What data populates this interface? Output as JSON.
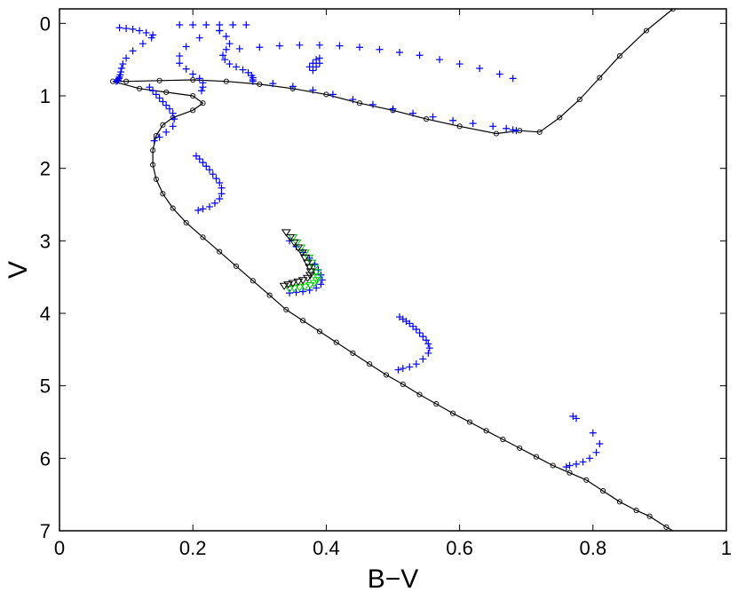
{
  "chart_data": {
    "type": "scatter",
    "title": "",
    "xlabel": "B−V",
    "ylabel": "V",
    "xlim": [
      0,
      1
    ],
    "ylim": [
      7,
      -0.2
    ],
    "y_inverted": true,
    "xticks": [
      0,
      0.2,
      0.4,
      0.6,
      0.8,
      1
    ],
    "xtick_labels": [
      "0",
      "0.2",
      "0.4",
      "0.6",
      "0.8",
      "1"
    ],
    "yticks": [
      0,
      1,
      2,
      3,
      4,
      5,
      6,
      7
    ],
    "ytick_labels": [
      "0",
      "1",
      "2",
      "3",
      "4",
      "5",
      "6",
      "7"
    ],
    "grid": false,
    "colors": {
      "isochrone": "#000000",
      "tracks": "#0000ff",
      "triangles_black": "#000000",
      "triangles_green": "#00cc00"
    },
    "series": [
      {
        "marker": "circle-line",
        "color": "#000000",
        "x": [
          0.92,
          0.88,
          0.84,
          0.81,
          0.78,
          0.75,
          0.72,
          0.69,
          0.655,
          0.6,
          0.55,
          0.5,
          0.45,
          0.4,
          0.35,
          0.3,
          0.25,
          0.2,
          0.15,
          0.1,
          0.08,
          0.12,
          0.16,
          0.2,
          0.215,
          0.2,
          0.17,
          0.155,
          0.145,
          0.14,
          0.14,
          0.145,
          0.155,
          0.17,
          0.19,
          0.215,
          0.24,
          0.265,
          0.29,
          0.315,
          0.34,
          0.365,
          0.39,
          0.415,
          0.44,
          0.465,
          0.49,
          0.515,
          0.54,
          0.565,
          0.59,
          0.615,
          0.64,
          0.665,
          0.69,
          0.715,
          0.74,
          0.765,
          0.79,
          0.815,
          0.84,
          0.865,
          0.885,
          0.91,
          0.93
        ],
        "y": [
          -0.2,
          0.1,
          0.45,
          0.75,
          1.05,
          1.3,
          1.5,
          1.48,
          1.52,
          1.42,
          1.32,
          1.2,
          1.1,
          0.98,
          0.9,
          0.84,
          0.8,
          0.78,
          0.79,
          0.8,
          0.8,
          0.9,
          0.95,
          1.0,
          1.1,
          1.2,
          1.3,
          1.4,
          1.55,
          1.75,
          1.95,
          2.15,
          2.35,
          2.55,
          2.75,
          2.95,
          3.15,
          3.35,
          3.55,
          3.75,
          3.95,
          4.1,
          4.25,
          4.4,
          4.55,
          4.7,
          4.85,
          4.98,
          5.12,
          5.25,
          5.38,
          5.5,
          5.62,
          5.74,
          5.86,
          5.98,
          6.1,
          6.2,
          6.3,
          6.45,
          6.6,
          6.72,
          6.8,
          6.95,
          7.05
        ]
      },
      {
        "marker": "plus",
        "color": "#0000ff",
        "tracks": [
          {
            "x": [
              0.09,
              0.1,
              0.11,
              0.12,
              0.13,
              0.14,
              0.138,
              0.125,
              0.11,
              0.1,
              0.095,
              0.093,
              0.092,
              0.091,
              0.09,
              0.089,
              0.088,
              0.087,
              0.085
            ],
            "y": [
              0.06,
              0.07,
              0.08,
              0.1,
              0.13,
              0.16,
              0.2,
              0.28,
              0.38,
              0.48,
              0.56,
              0.62,
              0.67,
              0.71,
              0.74,
              0.76,
              0.78,
              0.79,
              0.8
            ]
          },
          {
            "x": [
              0.18,
              0.2,
              0.22,
              0.24,
              0.26,
              0.28,
              0.24,
              0.21,
              0.19,
              0.18,
              0.18,
              0.19,
              0.2,
              0.21,
              0.215,
              0.215,
              0.213
            ],
            "y": [
              0.02,
              0.02,
              0.02,
              0.02,
              0.02,
              0.02,
              0.1,
              0.2,
              0.32,
              0.45,
              0.55,
              0.63,
              0.7,
              0.76,
              0.82,
              0.88,
              0.93
            ]
          },
          {
            "x": [
              0.24,
              0.25,
              0.255,
              0.25,
              0.245,
              0.248,
              0.255,
              0.265,
              0.275,
              0.283,
              0.288,
              0.29,
              0.29
            ],
            "y": [
              0.1,
              0.18,
              0.28,
              0.36,
              0.44,
              0.5,
              0.56,
              0.6,
              0.64,
              0.68,
              0.72,
              0.75,
              0.78
            ]
          },
          {
            "x": [
              0.27,
              0.3,
              0.33,
              0.36,
              0.39,
              0.42,
              0.45,
              0.48,
              0.51,
              0.54,
              0.57,
              0.6,
              0.63,
              0.66,
              0.68
            ],
            "y": [
              0.35,
              0.33,
              0.31,
              0.3,
              0.3,
              0.31,
              0.33,
              0.36,
              0.4,
              0.44,
              0.5,
              0.56,
              0.62,
              0.7,
              0.76
            ]
          },
          {
            "x": [
              0.29,
              0.32,
              0.35,
              0.38,
              0.41,
              0.44,
              0.47,
              0.5,
              0.53,
              0.56,
              0.59,
              0.62,
              0.65,
              0.67,
              0.68,
              0.685
            ],
            "y": [
              0.8,
              0.83,
              0.87,
              0.92,
              0.98,
              1.05,
              1.12,
              1.18,
              1.24,
              1.29,
              1.34,
              1.38,
              1.42,
              1.45,
              1.47,
              1.48
            ]
          },
          {
            "x": [
              0.375,
              0.38,
              0.385,
              0.39,
              0.39,
              0.385,
              0.38
            ],
            "y": [
              0.6,
              0.55,
              0.5,
              0.48,
              0.55,
              0.6,
              0.65
            ]
          },
          {
            "x": [
              0.135,
              0.14,
              0.145,
              0.15,
              0.155,
              0.16,
              0.165,
              0.17,
              0.172,
              0.17,
              0.16,
              0.15,
              0.142
            ],
            "y": [
              0.88,
              0.93,
              0.98,
              1.03,
              1.08,
              1.13,
              1.18,
              1.24,
              1.32,
              1.42,
              1.5,
              1.57,
              1.62
            ]
          },
          {
            "x": [
              0.205,
              0.21,
              0.215,
              0.22,
              0.225,
              0.23,
              0.235,
              0.24,
              0.243,
              0.243,
              0.24,
              0.233,
              0.225,
              0.215,
              0.208
            ],
            "y": [
              1.83,
              1.87,
              1.92,
              1.97,
              2.02,
              2.08,
              2.14,
              2.2,
              2.27,
              2.35,
              2.42,
              2.48,
              2.53,
              2.56,
              2.58
            ]
          },
          {
            "x": [
              0.345,
              0.355,
              0.365,
              0.375,
              0.383,
              0.388,
              0.392,
              0.394,
              0.392,
              0.385,
              0.375,
              0.365,
              0.355,
              0.345
            ],
            "y": [
              3.0,
              3.08,
              3.16,
              3.24,
              3.32,
              3.4,
              3.47,
              3.54,
              3.6,
              3.65,
              3.68,
              3.7,
              3.71,
              3.72
            ]
          },
          {
            "x": [
              0.51,
              0.515,
              0.52,
              0.525,
              0.53,
              0.535,
              0.54,
              0.545,
              0.55,
              0.553,
              0.555,
              0.553,
              0.545,
              0.535,
              0.525,
              0.515,
              0.508
            ],
            "y": [
              4.05,
              4.08,
              4.11,
              4.14,
              4.18,
              4.22,
              4.27,
              4.32,
              4.37,
              4.42,
              4.48,
              4.55,
              4.63,
              4.7,
              4.74,
              4.76,
              4.78
            ]
          },
          {
            "x": [
              0.77,
              0.775,
              0.8,
              0.81,
              0.805,
              0.795,
              0.785,
              0.775,
              0.765,
              0.76
            ],
            "y": [
              5.42,
              5.45,
              5.65,
              5.8,
              5.92,
              6.0,
              6.05,
              6.08,
              6.1,
              6.12
            ]
          }
        ]
      },
      {
        "marker": "triangle",
        "color": "#00cc00",
        "x": [
          0.35,
          0.356,
          0.362,
          0.368,
          0.374,
          0.378,
          0.382,
          0.385,
          0.387,
          0.386,
          0.382,
          0.376,
          0.368,
          0.36,
          0.352,
          0.345
        ],
        "y": [
          2.95,
          3.02,
          3.09,
          3.16,
          3.23,
          3.3,
          3.37,
          3.43,
          3.49,
          3.54,
          3.58,
          3.61,
          3.63,
          3.64,
          3.65,
          3.66
        ]
      },
      {
        "marker": "triangle",
        "color": "#000000",
        "x": [
          0.34,
          0.346,
          0.352,
          0.358,
          0.364,
          0.368,
          0.372,
          0.375,
          0.377,
          0.376,
          0.372,
          0.365,
          0.358,
          0.35,
          0.343,
          0.337
        ],
        "y": [
          2.88,
          2.95,
          3.02,
          3.09,
          3.16,
          3.23,
          3.3,
          3.36,
          3.42,
          3.47,
          3.51,
          3.54,
          3.56,
          3.58,
          3.6,
          3.62
        ]
      }
    ]
  }
}
